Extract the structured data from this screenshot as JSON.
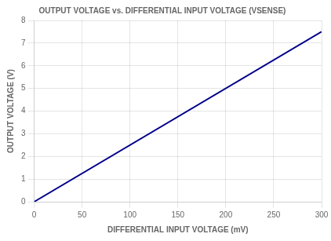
{
  "chart_data": {
    "type": "line",
    "title": "OUTPUT VOLTAGE vs. DIFFERENTIAL INPUT VOLTAGE (VSENSE)",
    "xlabel": "DIFFERENTIAL INPUT VOLTAGE (mV)",
    "ylabel": "OUTPUT VOLTAGE (V)",
    "x": [
      0,
      300
    ],
    "values": [
      0,
      7.5
    ],
    "color": "#00008B",
    "xlim": [
      0,
      300
    ],
    "ylim": [
      0,
      8
    ],
    "xticks": [
      0,
      50,
      100,
      150,
      200,
      250,
      300
    ],
    "yticks": [
      0,
      1,
      2,
      3,
      4,
      5,
      6,
      7,
      8
    ],
    "grid": true
  }
}
